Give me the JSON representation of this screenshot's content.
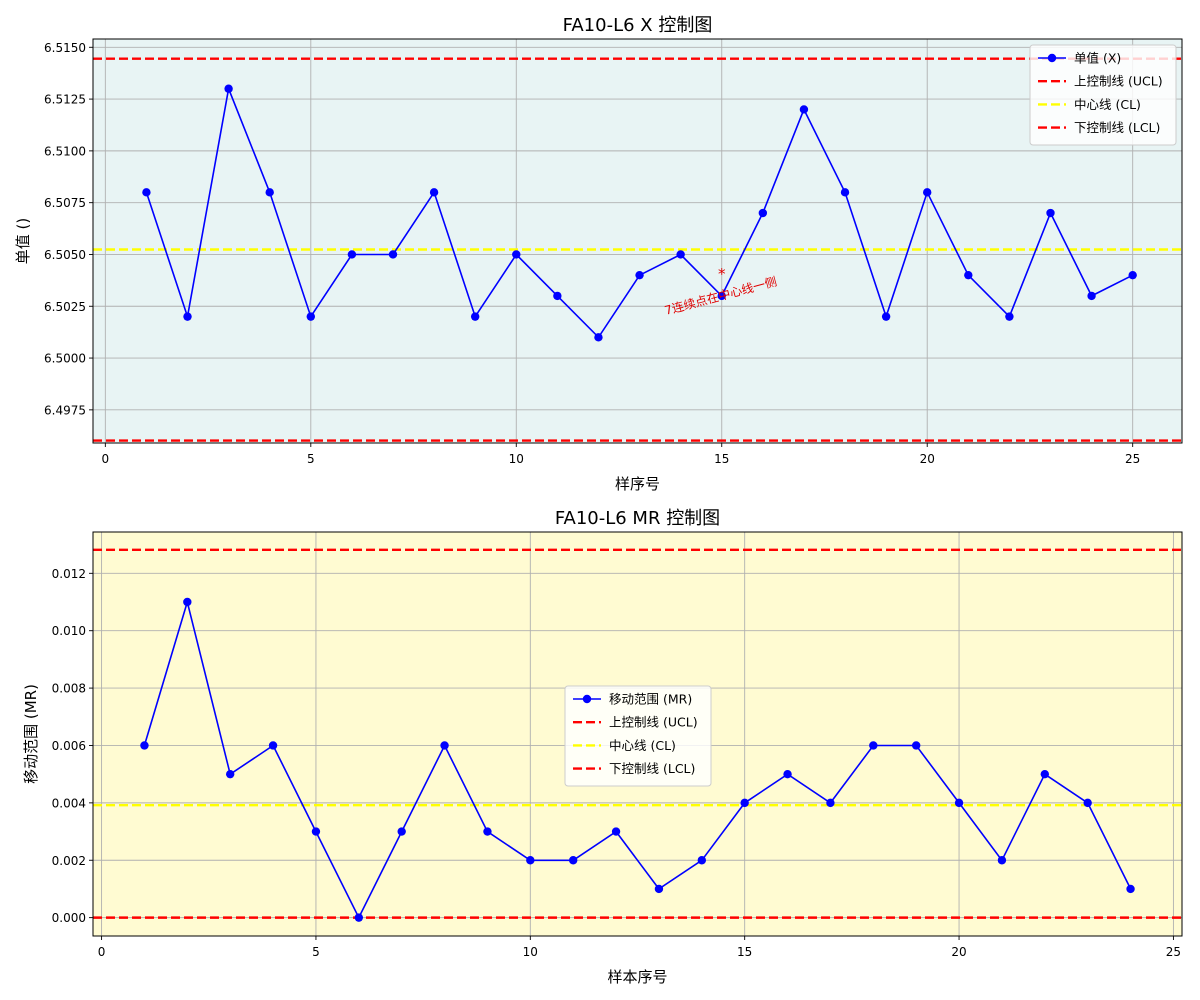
{
  "chart_data": [
    {
      "type": "line",
      "title": "FA10-L6 X 控制图",
      "xlabel": "样序号",
      "ylabel": "单值 ()",
      "xlim": [
        -0.3,
        26.2
      ],
      "ylim": [
        6.4959,
        6.5154
      ],
      "xticks": [
        "0",
        "5",
        "10",
        "15",
        "20",
        "25"
      ],
      "yticks": [
        "6.4975",
        "6.5000",
        "6.5025",
        "6.5050",
        "6.5075",
        "6.5100",
        "6.5125",
        "6.5150"
      ],
      "background": "#e8f4f4",
      "grid": true,
      "legend_position": "top-right",
      "series": [
        {
          "name": "单值 (X)",
          "color": "#0000ff",
          "x": [
            1,
            2,
            3,
            4,
            5,
            6,
            7,
            8,
            9,
            10,
            11,
            12,
            13,
            14,
            15,
            16,
            17,
            18,
            19,
            20,
            21,
            22,
            23,
            24,
            25
          ],
          "values": [
            6.508,
            6.502,
            6.513,
            6.508,
            6.502,
            6.505,
            6.505,
            6.508,
            6.502,
            6.505,
            6.503,
            6.501,
            6.504,
            6.505,
            6.503,
            6.507,
            6.512,
            6.508,
            6.502,
            6.508,
            6.504,
            6.502,
            6.507,
            6.503,
            6.504
          ]
        }
      ],
      "ref_lines": [
        {
          "name": "上控制线 (UCL)",
          "value": 6.51445,
          "color": "#ff0000"
        },
        {
          "name": "中心线 (CL)",
          "value": 6.50524,
          "color": "#ffff00"
        },
        {
          "name": "下控制线 (LCL)",
          "value": 6.49602,
          "color": "#ff0000"
        }
      ],
      "annotations": [
        {
          "text": "7连续点在中心线一侧",
          "x": 15,
          "y": 6.5029,
          "marker": "*",
          "marker_y": 6.5041,
          "color": "#e00000"
        }
      ]
    },
    {
      "type": "line",
      "title": "FA10-L6 MR 控制图",
      "xlabel": "样本序号",
      "ylabel": "移动范围 (MR)",
      "xlim": [
        -0.2,
        25.2
      ],
      "ylim": [
        -0.00064,
        0.01344
      ],
      "xticks": [
        "0",
        "5",
        "10",
        "15",
        "20",
        "25"
      ],
      "yticks": [
        "0.000",
        "0.002",
        "0.004",
        "0.006",
        "0.008",
        "0.010",
        "0.012"
      ],
      "background": "#fffbd2",
      "grid": true,
      "legend_position": "center",
      "series": [
        {
          "name": "移动范围 (MR)",
          "color": "#0000ff",
          "x": [
            1,
            2,
            3,
            4,
            5,
            6,
            7,
            8,
            9,
            10,
            11,
            12,
            13,
            14,
            15,
            16,
            17,
            18,
            19,
            20,
            21,
            22,
            23,
            24
          ],
          "values": [
            0.006,
            0.011,
            0.005,
            0.006,
            0.003,
            0.0,
            0.003,
            0.006,
            0.003,
            0.002,
            0.002,
            0.003,
            0.001,
            0.002,
            0.004,
            0.005,
            0.004,
            0.006,
            0.006,
            0.004,
            0.002,
            0.005,
            0.004,
            0.001
          ]
        }
      ],
      "ref_lines": [
        {
          "name": "上控制线 (UCL)",
          "value": 0.01282,
          "color": "#ff0000"
        },
        {
          "name": "中心线 (CL)",
          "value": 0.00392,
          "color": "#ffff00"
        },
        {
          "name": "下控制线 (LCL)",
          "value": 0.0,
          "color": "#ff0000"
        }
      ]
    }
  ]
}
